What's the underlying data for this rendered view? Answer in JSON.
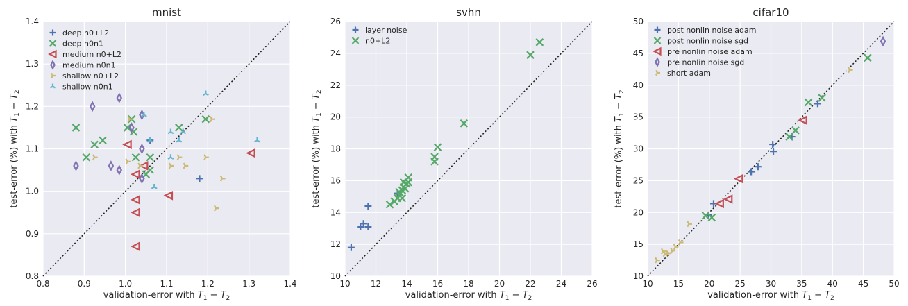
{
  "chart_data": [
    {
      "type": "scatter",
      "title": "mnist",
      "xlabel": "validation-error with T1 − T2",
      "ylabel": "test-error (%) with T1 − T2",
      "xlim": [
        0.8,
        1.4
      ],
      "ylim": [
        0.8,
        1.4
      ],
      "xticks": [
        "0.8",
        "0.9",
        "1.0",
        "1.1",
        "1.2",
        "1.3",
        "1.4"
      ],
      "yticks": [
        "0.8",
        "0.9",
        "1.0",
        "1.1",
        "1.2",
        "1.3",
        "1.4"
      ],
      "grid": true,
      "legend": "top-left",
      "diagonal": true,
      "series": [
        {
          "name": "deep n0+L2",
          "marker": "plus",
          "color": "#4C72B0",
          "points": [
            [
              1.06,
              1.12
            ],
            [
              1.18,
              1.03
            ]
          ]
        },
        {
          "name": "deep n0n1",
          "marker": "x",
          "color": "#55A868",
          "points": [
            [
              0.88,
              1.15
            ],
            [
              0.905,
              1.08
            ],
            [
              0.925,
              1.11
            ],
            [
              0.945,
              1.12
            ],
            [
              1.005,
              1.15
            ],
            [
              1.015,
              1.17
            ],
            [
              1.02,
              1.14
            ],
            [
              1.025,
              1.08
            ],
            [
              1.05,
              1.04
            ],
            [
              1.06,
              1.08
            ],
            [
              1.06,
              1.05
            ],
            [
              1.13,
              1.15
            ],
            [
              1.195,
              1.17
            ]
          ]
        },
        {
          "name": "medium n0+L2",
          "marker": "tri-left",
          "color": "#C44E52",
          "points": [
            [
              1.005,
              1.11
            ],
            [
              1.025,
              1.04
            ],
            [
              1.025,
              0.98
            ],
            [
              1.025,
              0.95
            ],
            [
              1.025,
              0.87
            ],
            [
              1.045,
              1.06
            ],
            [
              1.105,
              0.99
            ],
            [
              1.305,
              1.09
            ]
          ]
        },
        {
          "name": "medium n0n1",
          "marker": "diamond",
          "color": "#8172B2",
          "points": [
            [
              0.88,
              1.06
            ],
            [
              0.92,
              1.2
            ],
            [
              0.965,
              1.06
            ],
            [
              0.985,
              1.22
            ],
            [
              0.985,
              1.05
            ],
            [
              1.015,
              1.15
            ],
            [
              1.04,
              1.18
            ],
            [
              1.04,
              1.1
            ],
            [
              1.04,
              1.03
            ]
          ]
        },
        {
          "name": "shallow n0+L2",
          "marker": "tri-right",
          "color": "#CCB974",
          "points": [
            [
              0.925,
              1.08
            ],
            [
              1.005,
              1.07
            ],
            [
              1.01,
              1.17
            ],
            [
              1.035,
              1.06
            ],
            [
              1.11,
              1.06
            ],
            [
              1.13,
              1.08
            ],
            [
              1.145,
              1.06
            ],
            [
              1.195,
              1.08
            ],
            [
              1.21,
              1.17
            ],
            [
              1.22,
              0.96
            ],
            [
              1.235,
              1.03
            ]
          ]
        },
        {
          "name": "shallow n0n1",
          "marker": "tri-up",
          "color": "#64B5CD",
          "points": [
            [
              1.045,
              1.18
            ],
            [
              1.06,
              1.12
            ],
            [
              1.07,
              1.01
            ],
            [
              1.11,
              1.14
            ],
            [
              1.11,
              1.08
            ],
            [
              1.13,
              1.12
            ],
            [
              1.14,
              1.14
            ],
            [
              1.195,
              1.23
            ],
            [
              1.32,
              1.12
            ]
          ]
        }
      ]
    },
    {
      "type": "scatter",
      "title": "svhn",
      "xlabel": "validation-error with T1 − T2",
      "ylabel": "test-error (%) with T1 − T2",
      "xlim": [
        10,
        26
      ],
      "ylim": [
        10,
        26
      ],
      "xticks": [
        "10",
        "12",
        "14",
        "16",
        "18",
        "20",
        "22",
        "24",
        "26"
      ],
      "yticks": [
        "10",
        "12",
        "14",
        "16",
        "18",
        "20",
        "22",
        "24",
        "26"
      ],
      "grid": true,
      "legend": "top-left",
      "diagonal": true,
      "series": [
        {
          "name": "layer noise",
          "marker": "plus",
          "color": "#4C72B0",
          "points": [
            [
              10.4,
              11.8
            ],
            [
              11.0,
              13.1
            ],
            [
              11.2,
              13.3
            ],
            [
              11.5,
              13.1
            ],
            [
              11.5,
              14.4
            ],
            [
              13.4,
              15.2
            ]
          ]
        },
        {
          "name": "n0+L2",
          "marker": "x",
          "color": "#55A868",
          "points": [
            [
              12.9,
              14.5
            ],
            [
              13.2,
              14.7
            ],
            [
              13.4,
              14.9
            ],
            [
              13.5,
              15.3
            ],
            [
              13.6,
              15.2
            ],
            [
              13.7,
              15.4
            ],
            [
              13.7,
              14.9
            ],
            [
              13.8,
              15.6
            ],
            [
              13.8,
              15.9
            ],
            [
              13.9,
              15.5
            ],
            [
              14.0,
              15.8
            ],
            [
              14.1,
              16.2
            ],
            [
              14.1,
              15.9
            ],
            [
              15.8,
              17.2
            ],
            [
              15.8,
              17.5
            ],
            [
              16.0,
              18.1
            ],
            [
              17.7,
              19.6
            ],
            [
              22.0,
              23.9
            ],
            [
              22.6,
              24.7
            ]
          ]
        }
      ]
    },
    {
      "type": "scatter",
      "title": "cifar10",
      "xlabel": "validation-error with T1 − T2",
      "ylabel": "test-error (%) with T1 − T2",
      "xlim": [
        10,
        50
      ],
      "ylim": [
        10,
        50
      ],
      "xticks": [
        "10",
        "15",
        "20",
        "25",
        "30",
        "35",
        "40",
        "45",
        "50"
      ],
      "yticks": [
        "10",
        "15",
        "20",
        "25",
        "30",
        "35",
        "40",
        "45",
        "50"
      ],
      "grid": true,
      "legend": "top-left",
      "diagonal": true,
      "series": [
        {
          "name": "post nonlin noise adam",
          "marker": "plus",
          "color": "#4C72B0",
          "points": [
            [
              19.9,
              19.6
            ],
            [
              20.7,
              21.4
            ],
            [
              26.8,
              26.4
            ],
            [
              27.9,
              27.2
            ],
            [
              30.4,
              29.6
            ],
            [
              30.3,
              30.7
            ],
            [
              33.4,
              31.9
            ],
            [
              37.6,
              37.1
            ]
          ]
        },
        {
          "name": "post nonlin noise sgd",
          "marker": "x",
          "color": "#55A868",
          "points": [
            [
              19.4,
              19.5
            ],
            [
              20.4,
              19.2
            ],
            [
              33.0,
              31.9
            ],
            [
              34.0,
              32.9
            ],
            [
              36.1,
              37.3
            ],
            [
              38.3,
              38.0
            ],
            [
              45.7,
              44.3
            ]
          ]
        },
        {
          "name": "pre nonlin noise adam",
          "marker": "tri-left",
          "color": "#C44E52",
          "points": [
            [
              21.7,
              21.4
            ],
            [
              23.1,
              22.1
            ],
            [
              24.8,
              25.3
            ],
            [
              35.2,
              34.5
            ]
          ]
        },
        {
          "name": "pre nonlin noise sgd",
          "marker": "diamond",
          "color": "#8172B2",
          "points": [
            [
              48.2,
              46.9
            ]
          ]
        },
        {
          "name": "short adam",
          "marker": "tri-right",
          "color": "#CCB974",
          "points": [
            [
              11.5,
              12.5
            ],
            [
              12.5,
              13.9
            ],
            [
              12.8,
              13.5
            ],
            [
              13.3,
              13.6
            ],
            [
              14.0,
              14.0
            ],
            [
              14.5,
              14.6
            ],
            [
              15.3,
              15.3
            ],
            [
              16.7,
              18.2
            ],
            [
              42.8,
              42.4
            ]
          ]
        }
      ]
    }
  ]
}
